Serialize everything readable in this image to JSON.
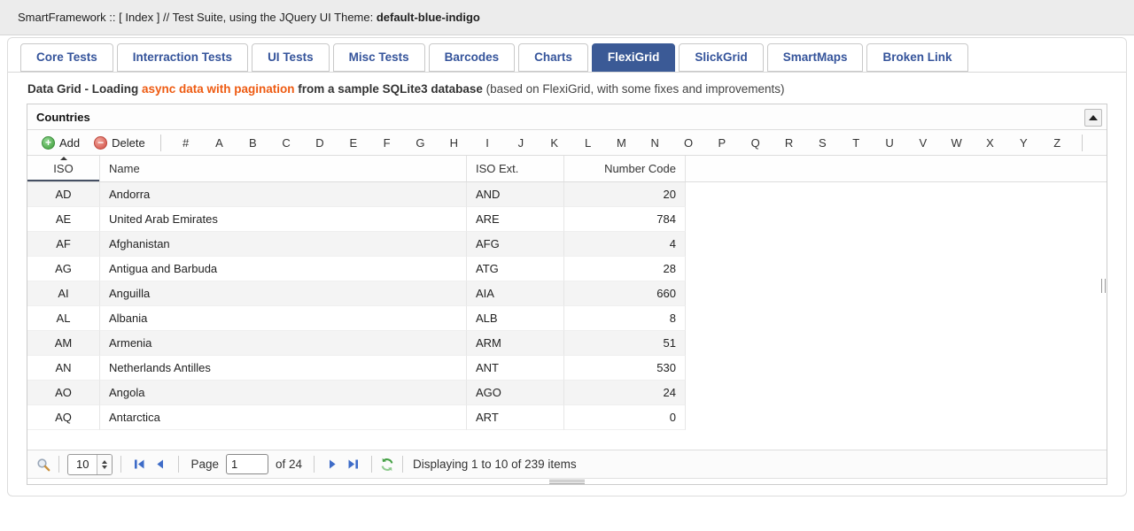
{
  "topbar": {
    "title_prefix": "SmartFramework :: [ Index ] // Test Suite, using the JQuery UI Theme: ",
    "theme_name": "default-blue-indigo"
  },
  "tabs": [
    {
      "label": "Core Tests",
      "active": false
    },
    {
      "label": "Interraction Tests",
      "active": false
    },
    {
      "label": "UI Tests",
      "active": false
    },
    {
      "label": "Misc Tests",
      "active": false
    },
    {
      "label": "Barcodes",
      "active": false
    },
    {
      "label": "Charts",
      "active": false
    },
    {
      "label": "FlexiGrid",
      "active": true
    },
    {
      "label": "SlickGrid",
      "active": false
    },
    {
      "label": "SmartMaps",
      "active": false
    },
    {
      "label": "Broken Link",
      "active": false
    }
  ],
  "description": {
    "part1": "Data Grid - Loading ",
    "highlight": "async data with pagination",
    "part2": " from a sample SQLite3 database ",
    "part3": "(based on FlexiGrid, with some fixes and improvements)"
  },
  "grid": {
    "title": "Countries",
    "toolbar": {
      "add_label": "Add",
      "add_icon_glyph": "+",
      "delete_label": "Delete",
      "delete_icon_glyph": "−"
    },
    "alphabet": [
      "#",
      "A",
      "B",
      "C",
      "D",
      "E",
      "F",
      "G",
      "H",
      "I",
      "J",
      "K",
      "L",
      "M",
      "N",
      "O",
      "P",
      "Q",
      "R",
      "S",
      "T",
      "U",
      "V",
      "W",
      "X",
      "Y",
      "Z"
    ],
    "columns": [
      {
        "label": "ISO",
        "align": "center",
        "sorted": true
      },
      {
        "label": "Name",
        "align": "left",
        "sorted": false
      },
      {
        "label": "ISO Ext.",
        "align": "left",
        "sorted": false
      },
      {
        "label": "Number Code",
        "align": "right",
        "sorted": false
      }
    ],
    "rows": [
      [
        "AD",
        "Andorra",
        "AND",
        "20"
      ],
      [
        "AE",
        "United Arab Emirates",
        "ARE",
        "784"
      ],
      [
        "AF",
        "Afghanistan",
        "AFG",
        "4"
      ],
      [
        "AG",
        "Antigua and Barbuda",
        "ATG",
        "28"
      ],
      [
        "AI",
        "Anguilla",
        "AIA",
        "660"
      ],
      [
        "AL",
        "Albania",
        "ALB",
        "8"
      ],
      [
        "AM",
        "Armenia",
        "ARM",
        "51"
      ],
      [
        "AN",
        "Netherlands Antilles",
        "ANT",
        "530"
      ],
      [
        "AO",
        "Angola",
        "AGO",
        "24"
      ],
      [
        "AQ",
        "Antarctica",
        "ART",
        "0"
      ]
    ],
    "pager": {
      "page_size": "10",
      "page_label": "Page",
      "page_value": "1",
      "of_label": "of 24",
      "status": "Displaying 1 to 10 of 239 items"
    }
  },
  "colors": {
    "accent_blue": "#3b5a96",
    "tab_text_blue": "#35549b",
    "highlight_orange": "#ee5b12",
    "add_green": "#4aa64a",
    "delete_red": "#d9534f",
    "pager_blue": "#3e6cc8",
    "refresh_green": "#46a046"
  }
}
